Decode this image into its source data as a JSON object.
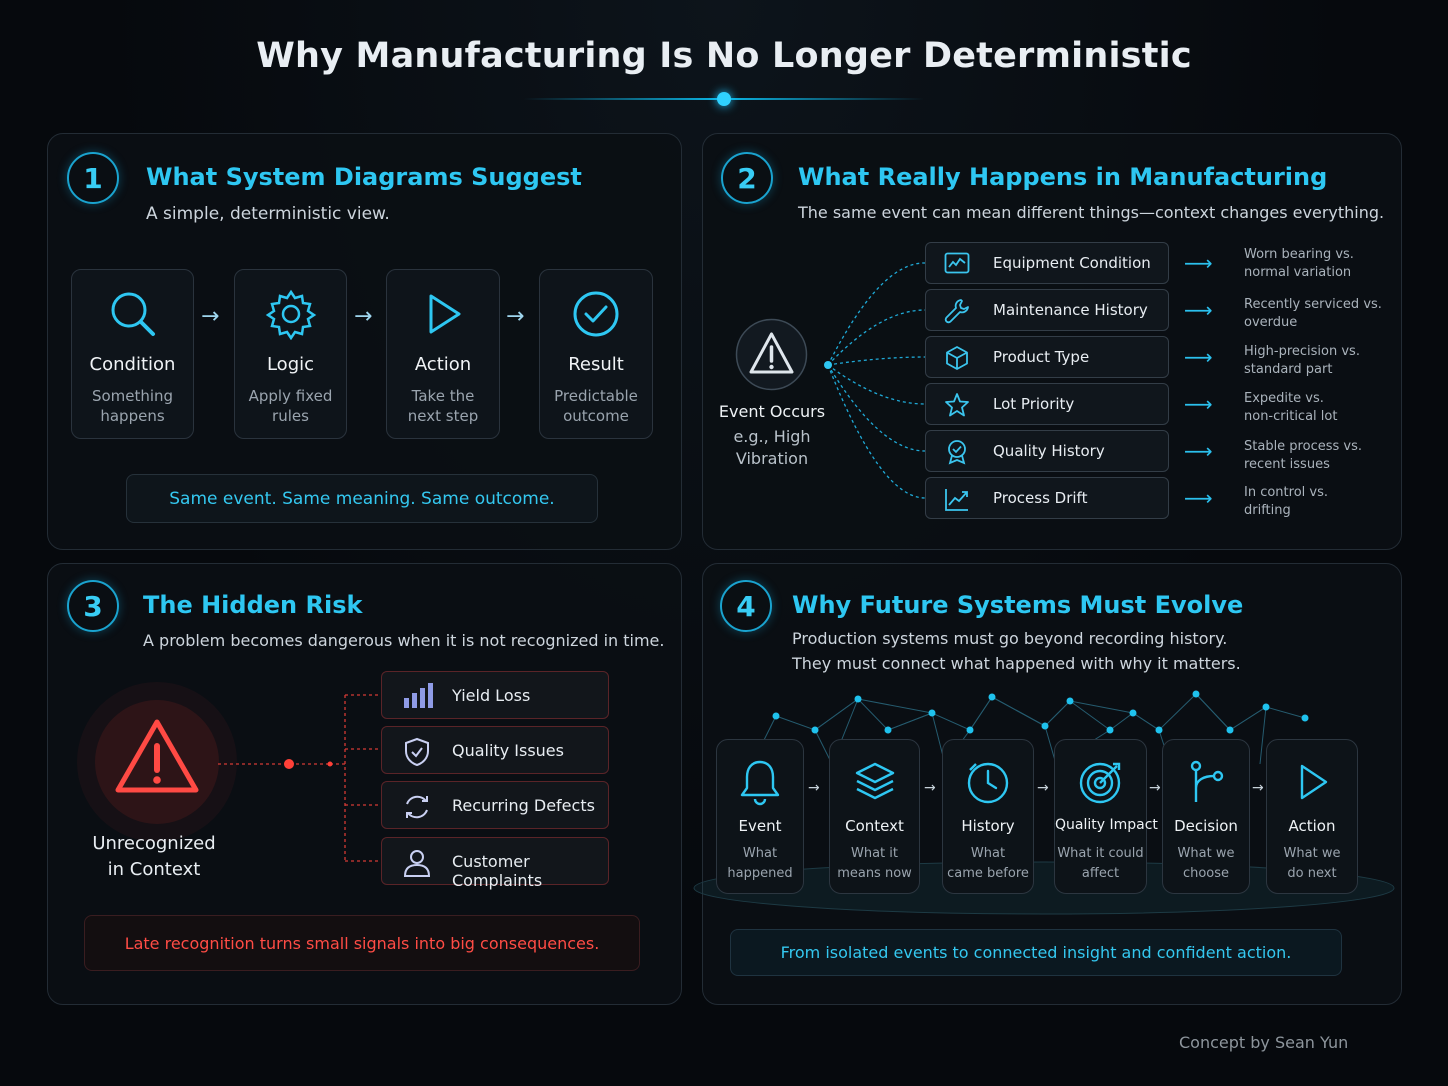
{
  "title": "Why Manufacturing Is No Longer Deterministic",
  "panel1": {
    "number": "1",
    "title": "What System Diagrams Suggest",
    "subtitle": "A simple, deterministic view.",
    "steps": [
      {
        "icon": "search-icon",
        "label": "Condition",
        "desc1": "Something",
        "desc2": "happens"
      },
      {
        "icon": "gear-icon",
        "label": "Logic",
        "desc1": "Apply fixed",
        "desc2": "rules"
      },
      {
        "icon": "play-icon",
        "label": "Action",
        "desc1": "Take the",
        "desc2": "next step"
      },
      {
        "icon": "check-circle-icon",
        "label": "Result",
        "desc1": "Predictable",
        "desc2": "outcome"
      }
    ],
    "footer": "Same event. Same meaning. Same outcome."
  },
  "panel2": {
    "number": "2",
    "title": "What Really Happens in Manufacturing",
    "subtitle": "The same event can mean different things—context changes everything.",
    "event": {
      "label": "Event Occurs",
      "line1": "e.g., High",
      "line2": "Vibration"
    },
    "factors": [
      {
        "icon": "monitor-chart-icon",
        "label": "Equipment Condition",
        "note1": "Worn bearing vs.",
        "note2": "normal variation"
      },
      {
        "icon": "wrench-icon",
        "label": "Maintenance History",
        "note1": "Recently serviced vs.",
        "note2": "overdue"
      },
      {
        "icon": "cube-icon",
        "label": "Product Type",
        "note1": "High-precision vs.",
        "note2": "standard part"
      },
      {
        "icon": "star-icon",
        "label": "Lot Priority",
        "note1": "Expedite vs.",
        "note2": "non-critical lot"
      },
      {
        "icon": "award-icon",
        "label": "Quality History",
        "note1": "Stable process vs.",
        "note2": "recent issues"
      },
      {
        "icon": "trend-icon",
        "label": "Process Drift",
        "note1": "In control vs.",
        "note2": "drifting"
      }
    ]
  },
  "panel3": {
    "number": "3",
    "title": "The Hidden Risk",
    "subtitle": "A problem becomes dangerous when it is not recognized in time.",
    "warning_line1": "Unrecognized",
    "warning_line2": "in Context",
    "risks": [
      {
        "icon": "bar-chart-icon",
        "label": "Yield Loss"
      },
      {
        "icon": "shield-check-icon",
        "label": "Quality Issues"
      },
      {
        "icon": "refresh-icon",
        "label": "Recurring Defects"
      },
      {
        "icon": "user-icon",
        "label": "Customer Complaints"
      }
    ],
    "footer": "Late recognition turns small signals into big consequences."
  },
  "panel4": {
    "number": "4",
    "title": "Why Future Systems Must Evolve",
    "subtitle1": "Production systems must go beyond recording history.",
    "subtitle2": "They must connect what happened with why it matters.",
    "nodes": [
      {
        "icon": "bell-icon",
        "label": "Event",
        "desc1": "What",
        "desc2": "happened"
      },
      {
        "icon": "layers-icon",
        "label": "Context",
        "desc1": "What it",
        "desc2": "means now"
      },
      {
        "icon": "clock-icon",
        "label": "History",
        "desc1": "What",
        "desc2": "came before"
      },
      {
        "icon": "target-icon",
        "label": "Quality Impact",
        "desc1": "What it could",
        "desc2": "affect"
      },
      {
        "icon": "branch-icon",
        "label": "Decision",
        "desc1": "What we",
        "desc2": "choose"
      },
      {
        "icon": "play-icon",
        "label": "Action",
        "desc1": "What we",
        "desc2": "do next"
      }
    ],
    "footer": "From isolated events to connected insight and confident action."
  },
  "credit": "Concept by Sean Yun",
  "colors": {
    "accent": "#2ec7f2",
    "danger": "#ff4a44",
    "background": "#06090d"
  }
}
